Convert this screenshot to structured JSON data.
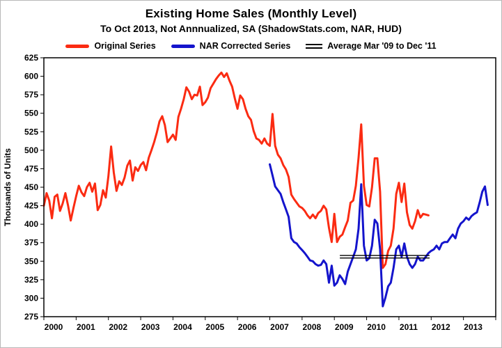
{
  "header": {
    "title": "Existing Home Sales (Monthly Level)",
    "subtitle": "To Oct 2013, Not Annnualized, SA (ShadowStats.com, NAR, HUD)"
  },
  "legend": {
    "items": [
      {
        "label": "Original Series",
        "color": "#fb2b12",
        "swatch": "thick-line"
      },
      {
        "label": "NAR Corrected Series",
        "color": "#1414cc",
        "swatch": "thick-line"
      },
      {
        "label": "Average Mar '09 to Dec '11",
        "color": "#000000",
        "swatch": "double-line"
      }
    ]
  },
  "chart_data": {
    "type": "line",
    "title": "Existing Home Sales (Monthly Level)",
    "subtitle": "To Oct 2013, Not Annnualized, SA (ShadowStats.com, NAR, HUD)",
    "ylabel": "Thousands of Units",
    "ylim": [
      275,
      625
    ],
    "ytick_step": 25,
    "xlim": [
      2000,
      2014
    ],
    "xticks": [
      2000,
      2001,
      2002,
      2003,
      2004,
      2005,
      2006,
      2007,
      2008,
      2009,
      2010,
      2011,
      2012,
      2013
    ],
    "x_unit": "monthly",
    "grid": false,
    "legend_position": "top",
    "series": [
      {
        "id": "original",
        "name": "Original Series",
        "color": "#fb2b12",
        "start_x": 2000.0,
        "points_per_year": 12,
        "values": [
          425,
          442,
          432,
          408,
          437,
          440,
          418,
          428,
          442,
          425,
          405,
          422,
          438,
          452,
          443,
          438,
          450,
          456,
          444,
          455,
          419,
          426,
          446,
          436,
          465,
          505,
          470,
          445,
          458,
          453,
          463,
          479,
          486,
          459,
          477,
          472,
          480,
          484,
          473,
          490,
          500,
          511,
          524,
          539,
          546,
          534,
          511,
          516,
          521,
          514,
          545,
          556,
          569,
          585,
          579,
          569,
          575,
          574,
          586,
          561,
          565,
          571,
          584,
          590,
          596,
          601,
          605,
          599,
          604,
          594,
          586,
          570,
          556,
          574,
          569,
          556,
          546,
          541,
          526,
          516,
          514,
          509,
          516,
          509,
          506,
          549,
          506,
          494,
          489,
          480,
          474,
          464,
          440,
          434,
          429,
          424,
          422,
          418,
          412,
          408,
          413,
          408,
          415,
          418,
          425,
          420,
          395,
          376,
          414,
          376,
          383,
          386,
          396,
          405,
          429,
          432,
          452,
          490,
          535,
          452,
          426,
          424,
          450,
          489,
          489,
          444,
          341,
          346,
          364,
          371,
          394,
          441,
          456,
          430,
          455,
          416,
          399,
          394,
          404,
          419,
          409,
          414,
          413,
          412
        ]
      },
      {
        "id": "nar-corrected",
        "name": "NAR Corrected Series",
        "color": "#1414cc",
        "start_x": 2007.0,
        "points_per_year": 12,
        "values": [
          481,
          466,
          451,
          446,
          441,
          430,
          420,
          410,
          381,
          376,
          374,
          369,
          365,
          361,
          356,
          351,
          350,
          346,
          344,
          345,
          351,
          346,
          321,
          344,
          317,
          321,
          331,
          326,
          319,
          336,
          346,
          356,
          366,
          394,
          454,
          371,
          351,
          354,
          371,
          406,
          401,
          366,
          289,
          301,
          316,
          321,
          341,
          366,
          371,
          356,
          374,
          356,
          346,
          341,
          346,
          356,
          351,
          351,
          356,
          361,
          364,
          366,
          371,
          366,
          374,
          376,
          376,
          381,
          386,
          381,
          394,
          401,
          404,
          409,
          406,
          411,
          414,
          416,
          429,
          444,
          451,
          426
        ]
      }
    ],
    "average_line": {
      "label": "Average Mar '09 to Dec '11",
      "value": 356,
      "x_start": 2009.17,
      "x_end": 2011.95,
      "color": "#000000"
    }
  }
}
